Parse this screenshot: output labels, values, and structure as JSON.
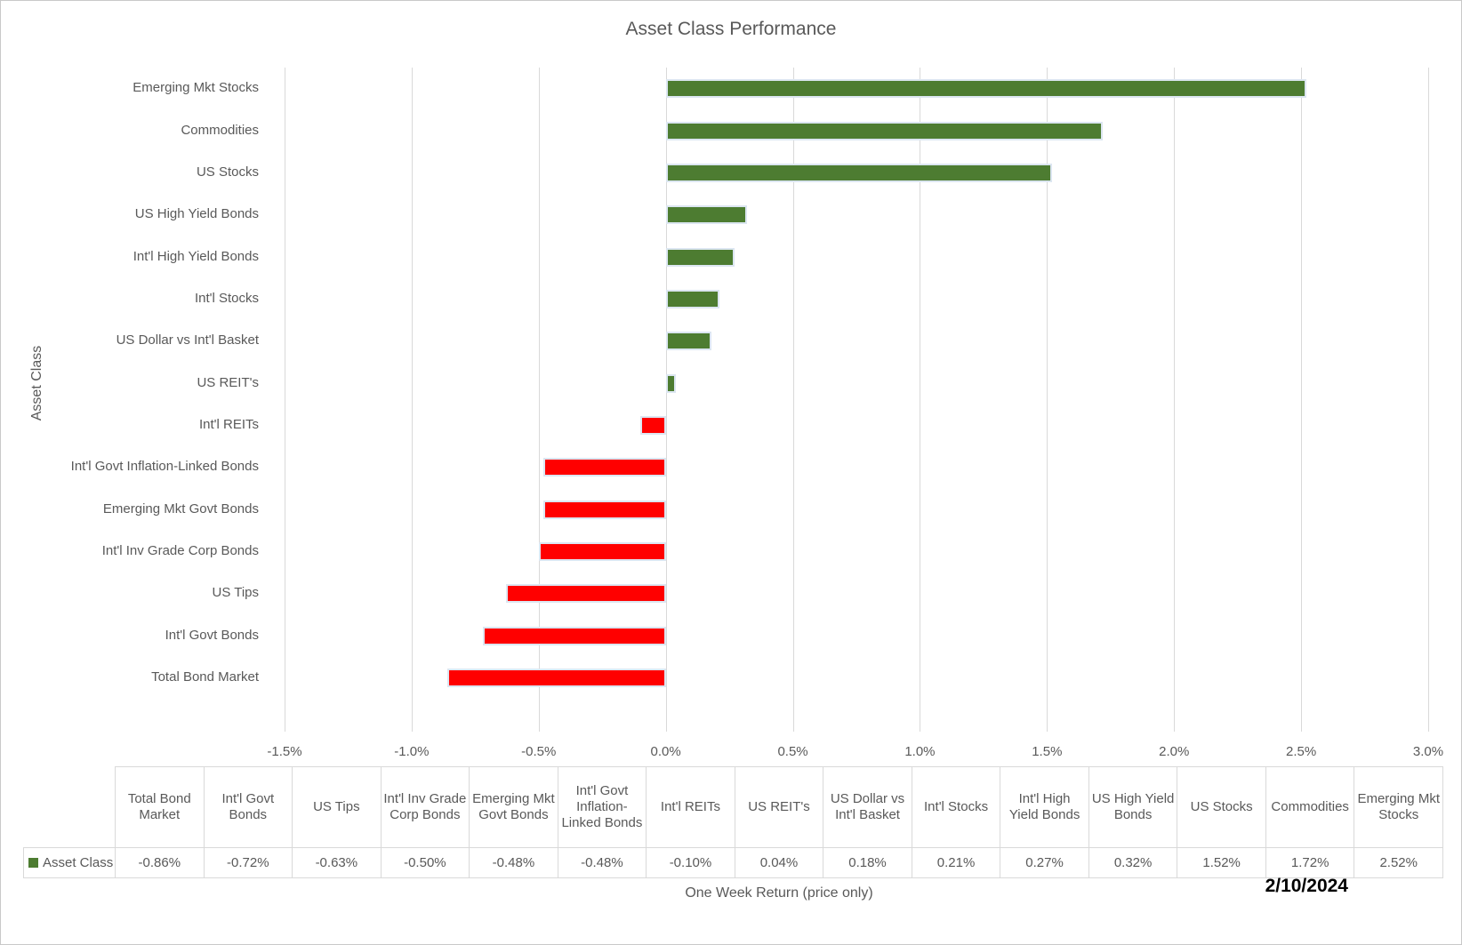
{
  "window": {
    "background": "#FFFFFF",
    "border_color": "#C9C9C9"
  },
  "chart": {
    "title": "Asset Class Performance",
    "y_axis_title": "Asset Class",
    "x_axis_title": "One Week Return (price only)",
    "date_label": "2/10/2024",
    "legend_label": "Asset Class",
    "colors": {
      "positive_bar": "#4D7C31",
      "negative_bar": "#FF0000",
      "bar_outline": "#DCE6F1",
      "gridline": "#D9D9D9",
      "text": "#595959",
      "table_border": "#D9D9D9"
    }
  },
  "chart_data": {
    "type": "bar",
    "orientation": "horizontal",
    "title": "Asset Class Performance",
    "xlabel": "One Week Return (price only)",
    "ylabel": "Asset Class",
    "series_name": "Asset Class",
    "grid": true,
    "legend_position": "bottom-left-of-data-table",
    "xlim_pct": [
      -1.5,
      3.0
    ],
    "x_ticks": [
      {
        "pct": -1.5,
        "label": "-1.5%"
      },
      {
        "pct": -1.0,
        "label": "-1.0%"
      },
      {
        "pct": -0.5,
        "label": "-0.5%"
      },
      {
        "pct": 0.0,
        "label": "0.0%"
      },
      {
        "pct": 0.5,
        "label": "0.5%"
      },
      {
        "pct": 1.0,
        "label": "1.0%"
      },
      {
        "pct": 1.5,
        "label": "1.5%"
      },
      {
        "pct": 2.0,
        "label": "2.0%"
      },
      {
        "pct": 2.5,
        "label": "2.5%"
      },
      {
        "pct": 3.0,
        "label": "3.0%"
      }
    ],
    "categories_top_to_bottom": [
      {
        "label": "Emerging Mkt Stocks",
        "value_pct": 2.52
      },
      {
        "label": "Commodities",
        "value_pct": 1.72
      },
      {
        "label": "US Stocks",
        "value_pct": 1.52
      },
      {
        "label": "US High Yield Bonds",
        "value_pct": 0.32
      },
      {
        "label": "Int'l High Yield Bonds",
        "value_pct": 0.27
      },
      {
        "label": "Int'l Stocks",
        "value_pct": 0.21
      },
      {
        "label": "US Dollar vs Int'l Basket",
        "value_pct": 0.18
      },
      {
        "label": "US REIT's",
        "value_pct": 0.04
      },
      {
        "label": "Int'l REITs",
        "value_pct": -0.1
      },
      {
        "label": "Int'l Govt Inflation-Linked Bonds",
        "value_pct": -0.48
      },
      {
        "label": "Emerging Mkt Govt Bonds",
        "value_pct": -0.48
      },
      {
        "label": "Int'l Inv Grade Corp Bonds",
        "value_pct": -0.5
      },
      {
        "label": "US Tips",
        "value_pct": -0.63
      },
      {
        "label": "Int'l Govt Bonds",
        "value_pct": -0.72
      },
      {
        "label": "Total Bond Market",
        "value_pct": -0.86
      }
    ],
    "data_table": {
      "legend_label": "Asset Class",
      "columns": [
        {
          "label": "Total Bond Market",
          "value": "-0.86%"
        },
        {
          "label": "Int'l Govt Bonds",
          "value": "-0.72%"
        },
        {
          "label": "US Tips",
          "value": "-0.63%"
        },
        {
          "label": "Int'l Inv Grade Corp Bonds",
          "value": "-0.50%"
        },
        {
          "label": "Emerging Mkt Govt Bonds",
          "value": "-0.48%"
        },
        {
          "label": "Int'l Govt Inflation-Linked Bonds",
          "value": "-0.48%"
        },
        {
          "label": "Int'l REITs",
          "value": "-0.10%"
        },
        {
          "label": "US REIT's",
          "value": "0.04%"
        },
        {
          "label": "US Dollar vs Int'l Basket",
          "value": "0.18%"
        },
        {
          "label": "Int'l Stocks",
          "value": "0.21%"
        },
        {
          "label": "Int'l High Yield Bonds",
          "value": "0.27%"
        },
        {
          "label": "US High Yield Bonds",
          "value": "0.32%"
        },
        {
          "label": "US Stocks",
          "value": "1.52%"
        },
        {
          "label": "Commodities",
          "value": "1.72%"
        },
        {
          "label": "Emerging Mkt Stocks",
          "value": "2.52%"
        }
      ]
    }
  }
}
